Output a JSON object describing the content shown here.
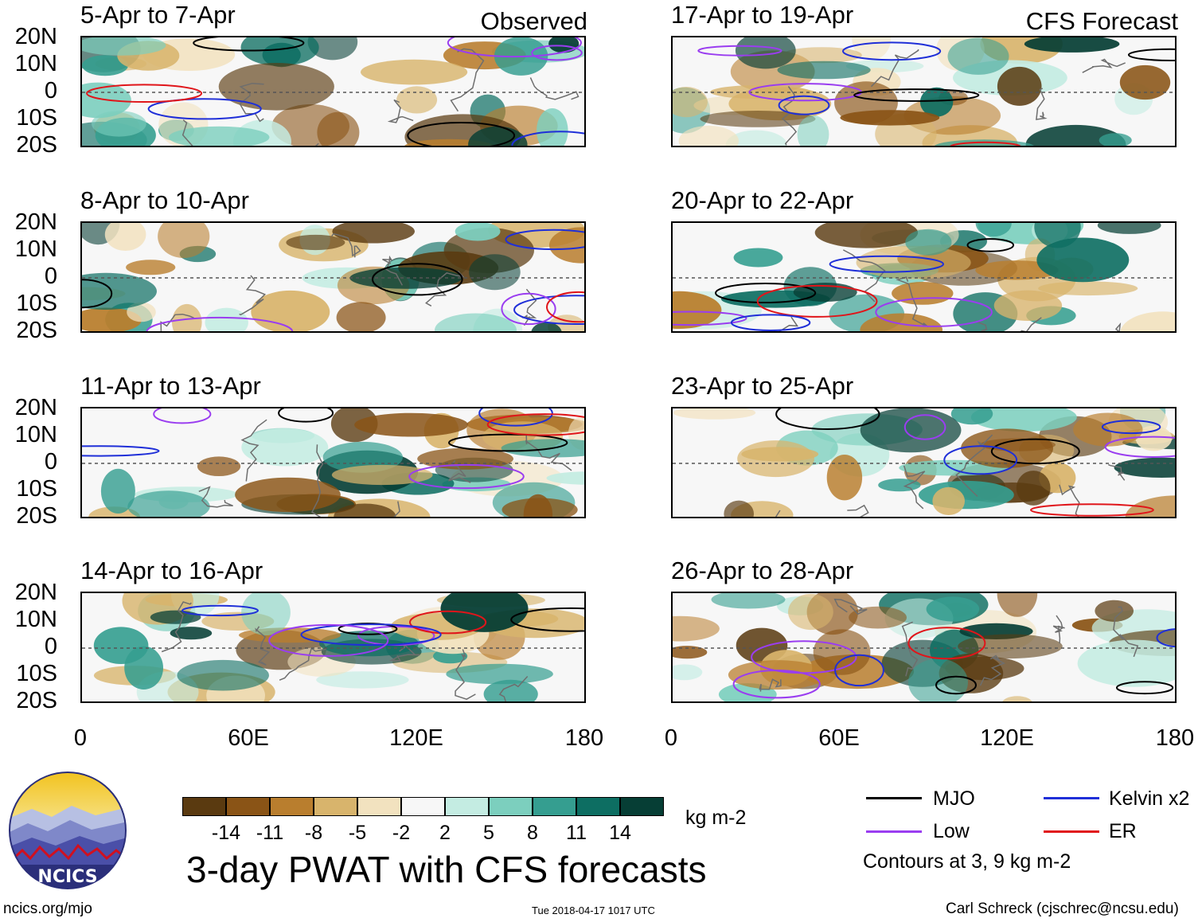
{
  "header": {
    "left_tag": "Observed",
    "right_tag": "CFS Forecast"
  },
  "panels_left": [
    {
      "title": "5-Apr to 7-Apr"
    },
    {
      "title": "8-Apr to 10-Apr"
    },
    {
      "title": "11-Apr to 13-Apr"
    },
    {
      "title": "14-Apr to 16-Apr"
    }
  ],
  "panels_right": [
    {
      "title": "17-Apr to 19-Apr"
    },
    {
      "title": "20-Apr to 22-Apr"
    },
    {
      "title": "23-Apr to 25-Apr"
    },
    {
      "title": "26-Apr to 28-Apr"
    }
  ],
  "chart_data": {
    "type": "heatmap",
    "title": "3-day PWAT with CFS forecasts",
    "variable": "PWAT anomaly",
    "units": "kg m-2",
    "lat_labels": [
      "20N",
      "10N",
      "0",
      "10S",
      "20S"
    ],
    "lat_range": [
      -20,
      20
    ],
    "lon_labels": [
      "0",
      "60E",
      "120E",
      "180"
    ],
    "lon_range": [
      0,
      180
    ],
    "colorbar": {
      "levels": [
        "-14",
        "-11",
        "-8",
        "-5",
        "-2",
        "2",
        "5",
        "8",
        "11",
        "14"
      ],
      "colors": [
        "#5a3a10",
        "#8a5416",
        "#b97e2e",
        "#d8b46c",
        "#f2e2bf",
        "#f7f7f7",
        "#c4ece2",
        "#7ccfbe",
        "#359e90",
        "#0d6e62",
        "#063e35"
      ]
    },
    "contours": "Contours at 3, 9 kg m-2",
    "legend": [
      {
        "name": "MJO",
        "color": "#000000"
      },
      {
        "name": "Kelvin x2",
        "color": "#1f2fd8"
      },
      {
        "name": "Low",
        "color": "#9a3df0"
      },
      {
        "name": "ER",
        "color": "#e0151a"
      }
    ]
  },
  "footer": {
    "site": "ncics.org/mjo",
    "timestamp": "Tue 2018-04-17 1017 UTC",
    "author": "Carl Schreck (cjschrec@ncsu.edu)",
    "logo_text": "NCICS"
  }
}
